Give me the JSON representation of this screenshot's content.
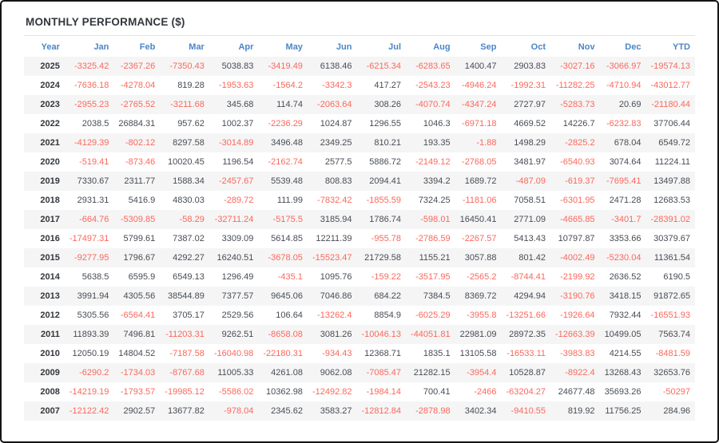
{
  "title": "MONTHLY PERFORMANCE ($)",
  "colors": {
    "header_blue": "#4a86c8",
    "negative_red": "#fb685c",
    "positive_text": "#474d55",
    "year_text": "#32373d",
    "row_stripe": "#f5f5f5",
    "frame_border": "#141414"
  },
  "chart_data": {
    "type": "table",
    "title": "MONTHLY PERFORMANCE ($)",
    "columns": [
      "Year",
      "Jan",
      "Feb",
      "Mar",
      "Apr",
      "May",
      "Jun",
      "Jul",
      "Aug",
      "Sep",
      "Oct",
      "Nov",
      "Dec",
      "YTD"
    ],
    "rows": [
      [
        2025,
        -3325.42,
        -2367.26,
        -7350.43,
        5038.83,
        -3419.49,
        6138.46,
        -6215.34,
        -6283.65,
        1400.47,
        2903.83,
        -3027.16,
        -3066.97,
        -19574.13
      ],
      [
        2024,
        -7636.18,
        -4278.04,
        819.28,
        -1953.63,
        -1564.2,
        -3342.3,
        417.27,
        -2543.23,
        -4946.24,
        -1992.31,
        -11282.25,
        -4710.94,
        -43012.77
      ],
      [
        2023,
        -2955.23,
        -2765.52,
        -3211.68,
        345.68,
        114.74,
        -2063.64,
        308.26,
        -4070.74,
        -4347.24,
        2727.97,
        -5283.73,
        20.69,
        -21180.44
      ],
      [
        2022,
        2038.5,
        26884.31,
        957.62,
        1002.37,
        -2236.29,
        1024.87,
        1296.55,
        1046.3,
        -6971.18,
        4669.52,
        14226.7,
        -6232.83,
        37706.44
      ],
      [
        2021,
        -4129.39,
        -802.12,
        8297.58,
        -3014.89,
        3496.48,
        2349.25,
        810.21,
        193.35,
        -1.88,
        1498.29,
        -2825.2,
        678.04,
        6549.72
      ],
      [
        2020,
        -519.41,
        -873.46,
        10020.45,
        1196.54,
        -2162.74,
        2577.5,
        5886.72,
        -2149.12,
        -2768.05,
        3481.97,
        -6540.93,
        3074.64,
        11224.11
      ],
      [
        2019,
        7330.67,
        2311.77,
        1588.34,
        -2457.67,
        5539.48,
        808.83,
        2094.41,
        3394.2,
        1689.72,
        -487.09,
        -619.37,
        -7695.41,
        13497.88
      ],
      [
        2018,
        2931.31,
        5416.9,
        4830.03,
        -289.72,
        111.99,
        -7832.42,
        -1855.59,
        7324.25,
        -1181.06,
        7058.51,
        -6301.95,
        2471.28,
        12683.53
      ],
      [
        2017,
        -664.76,
        -5309.85,
        -58.29,
        -32711.24,
        -5175.5,
        3185.94,
        1786.74,
        -598.01,
        16450.41,
        2771.09,
        -4665.85,
        -3401.7,
        -28391.02
      ],
      [
        2016,
        -17497.31,
        5799.61,
        7387.02,
        3309.09,
        5614.85,
        12211.39,
        -955.78,
        -2786.59,
        -2267.57,
        5413.43,
        10797.87,
        3353.66,
        30379.67
      ],
      [
        2015,
        -9277.95,
        1796.67,
        4292.27,
        16240.51,
        -3678.05,
        -15523.47,
        21729.58,
        1155.21,
        3057.88,
        801.42,
        -4002.49,
        -5230.04,
        11361.54
      ],
      [
        2014,
        5638.5,
        6595.9,
        6549.13,
        1296.49,
        -435.1,
        1095.76,
        -159.22,
        -3517.95,
        -2565.2,
        -8744.41,
        -2199.92,
        2636.52,
        6190.5
      ],
      [
        2013,
        3991.94,
        4305.56,
        38544.89,
        7377.57,
        9645.06,
        7046.86,
        684.22,
        7384.5,
        8369.72,
        4294.94,
        -3190.76,
        3418.15,
        91872.65
      ],
      [
        2012,
        5305.56,
        -6564.41,
        3705.17,
        2529.56,
        106.64,
        -13262.4,
        8854.9,
        -6025.29,
        -3955.8,
        -13251.66,
        -1926.64,
        7932.44,
        -16551.93
      ],
      [
        2011,
        11893.39,
        7496.81,
        -11203.31,
        9262.51,
        -8658.08,
        3081.26,
        -10046.13,
        -44051.81,
        22981.09,
        28972.35,
        -12663.39,
        10499.05,
        7563.74
      ],
      [
        2010,
        12050.19,
        14804.52,
        -7187.58,
        -16040.98,
        -22180.31,
        -934.43,
        12368.71,
        1835.1,
        13105.58,
        -16533.11,
        -3983.83,
        4214.55,
        -8481.59
      ],
      [
        2009,
        -6290.2,
        -1734.03,
        -8767.68,
        11005.33,
        4261.08,
        9062.08,
        -7085.47,
        21282.15,
        -3954.4,
        10528.87,
        -8922.4,
        13268.43,
        32653.76
      ],
      [
        2008,
        -14219.19,
        -1793.57,
        -19985.12,
        -5586.02,
        10362.98,
        -12492.82,
        -1984.14,
        700.41,
        -2466,
        -63204.27,
        24677.48,
        35693.26,
        -50297
      ],
      [
        2007,
        -12122.42,
        2902.57,
        13677.82,
        -978.04,
        2345.62,
        3583.27,
        -12812.84,
        -2878.98,
        3402.34,
        -9410.55,
        819.92,
        11756.25,
        284.96
      ]
    ]
  }
}
